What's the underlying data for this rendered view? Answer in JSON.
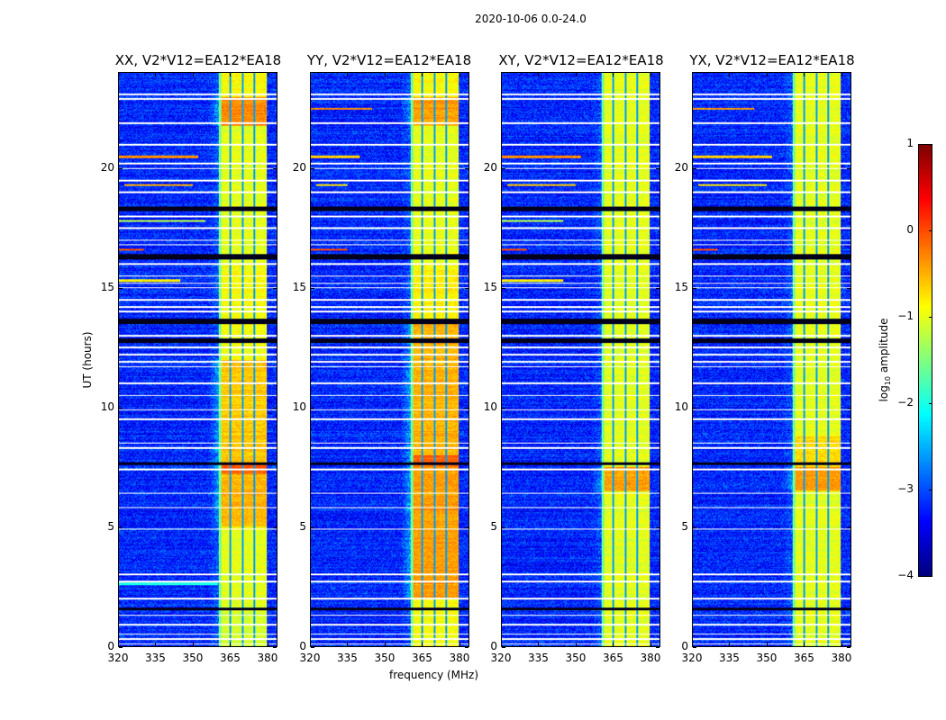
{
  "suptitle": "2020-10-06 0.0-24.0",
  "chart_data": {
    "type": "heatmap",
    "title": "2020-10-06 0.0-24.0",
    "xlabel": "frequency (MHz)",
    "ylabel": "UT (hours)",
    "xlim": [
      320,
      384
    ],
    "ylim": [
      0,
      24
    ],
    "xticks": [
      320,
      335,
      350,
      365,
      380
    ],
    "yticks": [
      0,
      5,
      10,
      15,
      20
    ],
    "colorbar": {
      "label_prefix": "log",
      "label_sub": "10",
      "label_suffix": " amplitude",
      "range": [
        -4,
        1
      ],
      "ticks": [
        1,
        0,
        -1,
        -2,
        -3,
        -4
      ],
      "colormap": "jet"
    },
    "background_level": -3.2,
    "band_mhz": [
      360.5,
      380
    ],
    "band_gaps_mhz": [
      365.3,
      370.2,
      375.0
    ],
    "flagged_ut": [
      0.1,
      0.3,
      0.5,
      0.9,
      1.3,
      2.0,
      2.7,
      3.0,
      4.9,
      5.8,
      6.4,
      7.4,
      8.3,
      8.5,
      9.5,
      9.9,
      10.5,
      11.0,
      11.7,
      11.9,
      12.2,
      12.5,
      13.0,
      14.0,
      14.2,
      14.5,
      15.0,
      15.2,
      15.5,
      16.0,
      16.8,
      17.0,
      17.5,
      18.0,
      19.0,
      19.5,
      20.0,
      20.2,
      21.0,
      21.9,
      22.9,
      23.1
    ],
    "dark_ut": [
      [
        1.5,
        1.6
      ],
      [
        7.6,
        7.7
      ],
      [
        12.7,
        12.9
      ],
      [
        13.5,
        13.7
      ],
      [
        16.2,
        16.4
      ],
      [
        18.2,
        18.4
      ]
    ],
    "panels": [
      {
        "title": "XX, V2*V12=EA12*EA18",
        "band_levels": [
          [
            0,
            1.8,
            -1.1
          ],
          [
            1.8,
            5,
            -1.0
          ],
          [
            5,
            7.2,
            -0.5
          ],
          [
            7.2,
            7.6,
            -0.1
          ],
          [
            7.6,
            12,
            -0.6
          ],
          [
            12,
            16,
            -0.9
          ],
          [
            16,
            21.8,
            -1.0
          ],
          [
            21.8,
            23,
            -0.3
          ],
          [
            23,
            24,
            -0.9
          ]
        ],
        "rfi": [
          [
            20.5,
            320,
            352,
            -0.3
          ],
          [
            19.3,
            322,
            350,
            -0.5
          ],
          [
            16.6,
            320,
            330,
            0.0
          ],
          [
            17.8,
            320,
            355,
            -1.2
          ],
          [
            15.3,
            320,
            345,
            -0.8
          ],
          [
            0.9,
            334,
            346,
            -0.1
          ],
          [
            2.6,
            320,
            360,
            -2.0
          ]
        ]
      },
      {
        "title": "YY, V2*V12=EA12*EA18",
        "band_levels": [
          [
            0,
            2,
            -0.9
          ],
          [
            2,
            7.5,
            -0.4
          ],
          [
            7.5,
            8,
            -0.1
          ],
          [
            8,
            13.5,
            -0.5
          ],
          [
            13.5,
            16,
            -0.8
          ],
          [
            16,
            21.8,
            -1.0
          ],
          [
            21.8,
            23,
            -0.4
          ],
          [
            23,
            24,
            -0.9
          ]
        ],
        "rfi": [
          [
            20.5,
            320,
            340,
            -0.6
          ],
          [
            19.3,
            322,
            335,
            -0.8
          ],
          [
            16.6,
            320,
            335,
            0.0
          ],
          [
            22.5,
            320,
            345,
            -0.3
          ],
          [
            0.9,
            320,
            360,
            -1.5
          ]
        ]
      },
      {
        "title": "XY, V2*V12=EA12*EA18",
        "band_levels": [
          [
            0,
            6.5,
            -1.0
          ],
          [
            6.5,
            7.5,
            -0.4
          ],
          [
            7.5,
            24,
            -1.0
          ]
        ],
        "rfi": [
          [
            20.5,
            320,
            352,
            -0.3
          ],
          [
            19.3,
            322,
            350,
            -0.6
          ],
          [
            16.6,
            320,
            330,
            0.0
          ],
          [
            17.8,
            320,
            345,
            -1.2
          ],
          [
            15.3,
            320,
            345,
            -0.8
          ],
          [
            0.9,
            330,
            360,
            -1.3
          ]
        ]
      },
      {
        "title": "YX, V2*V12=EA12*EA18",
        "band_levels": [
          [
            0,
            6.5,
            -1.0
          ],
          [
            6.5,
            7.5,
            -0.4
          ],
          [
            7.5,
            8.8,
            -0.7
          ],
          [
            8.8,
            24,
            -1.0
          ]
        ],
        "rfi": [
          [
            20.5,
            320,
            352,
            -0.6
          ],
          [
            19.3,
            322,
            350,
            -0.8
          ],
          [
            16.6,
            320,
            330,
            0.0
          ],
          [
            22.5,
            320,
            345,
            -0.4
          ],
          [
            0.9,
            331,
            339,
            -0.2
          ]
        ]
      }
    ]
  }
}
